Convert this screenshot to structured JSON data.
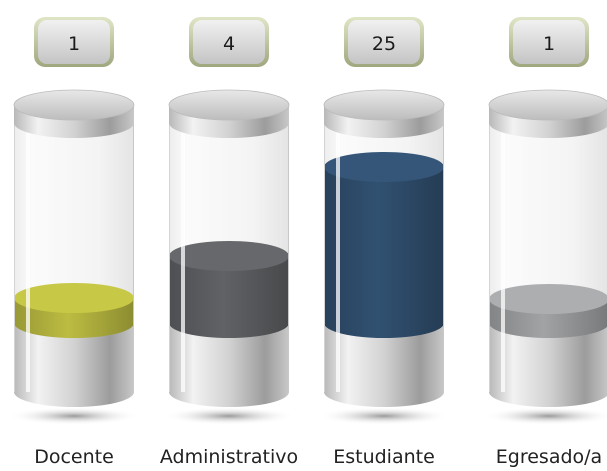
{
  "chart_data": {
    "type": "bar",
    "title": "",
    "xlabel": "",
    "ylabel": "",
    "categories": [
      "Docente",
      "Administrativo",
      "Estudiante",
      "Egresado/a"
    ],
    "values": [
      1,
      4,
      25,
      1
    ],
    "fill_colors": [
      "#b3b33f",
      "#5b5d60",
      "#2f4d6c",
      "#9a9b9d"
    ],
    "legend": "none",
    "grid": false
  }
}
